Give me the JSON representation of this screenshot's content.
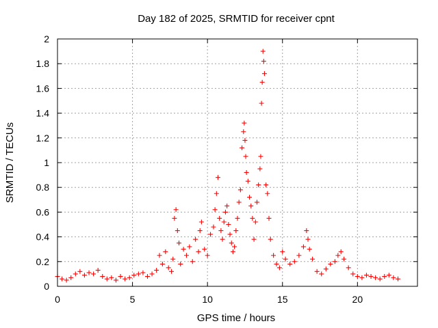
{
  "chart_data": {
    "type": "scatter",
    "title": "Day 182 of 2025, SRMTID for receiver cpnt",
    "xlabel": "GPS time / hours",
    "ylabel": "SRMTID / TECUs",
    "xlim": [
      0,
      24
    ],
    "ylim": [
      0,
      2
    ],
    "xticks": [
      0,
      5,
      10,
      15,
      20
    ],
    "xtick_labels": [
      "0",
      "5",
      "10",
      "15",
      "20"
    ],
    "yticks": [
      0,
      0.2,
      0.4,
      0.6,
      0.8,
      1,
      1.2,
      1.4,
      1.6,
      1.8,
      2
    ],
    "ytick_labels": [
      "0",
      "0.2",
      "0.4",
      "0.6",
      "0.8",
      "1",
      "1.2",
      "1.4",
      "1.6",
      "1.8",
      "2"
    ],
    "grid": true,
    "marker": "plus",
    "series": [
      {
        "name": "SRMTID",
        "color": "#ff0000",
        "x": [
          0.0,
          0.3,
          0.6,
          0.9,
          1.2,
          1.5,
          1.8,
          2.1,
          2.4,
          2.7,
          3.0,
          3.3,
          3.6,
          3.9,
          4.2,
          4.5,
          4.8,
          5.1,
          5.4,
          5.7,
          6.0,
          6.3,
          6.6,
          6.8,
          7.0,
          7.2,
          7.4,
          7.6,
          7.7,
          7.8,
          7.9,
          8.0,
          8.1,
          8.2,
          8.4,
          8.6,
          8.8,
          9.0,
          9.2,
          9.4,
          9.5,
          9.6,
          9.8,
          10.0,
          10.2,
          10.4,
          10.5,
          10.6,
          10.7,
          10.8,
          10.9,
          11.0,
          11.1,
          11.2,
          11.3,
          11.4,
          11.5,
          11.6,
          11.7,
          11.8,
          11.9,
          12.0,
          12.1,
          12.2,
          12.3,
          12.4,
          12.45,
          12.5,
          12.55,
          12.6,
          12.7,
          12.8,
          12.9,
          13.0,
          13.1,
          13.2,
          13.3,
          13.4,
          13.5,
          13.55,
          13.6,
          13.65,
          13.7,
          13.75,
          13.8,
          13.9,
          14.0,
          14.1,
          14.2,
          14.4,
          14.6,
          14.8,
          15.0,
          15.2,
          15.5,
          15.8,
          16.1,
          16.4,
          16.6,
          16.7,
          16.8,
          17.0,
          17.3,
          17.6,
          17.9,
          18.2,
          18.5,
          18.7,
          18.9,
          19.1,
          19.4,
          19.7,
          20.0,
          20.3,
          20.6,
          20.9,
          21.2,
          21.5,
          21.8,
          22.1,
          22.4,
          22.7
        ],
        "y": [
          0.08,
          0.06,
          0.05,
          0.07,
          0.1,
          0.12,
          0.09,
          0.11,
          0.1,
          0.13,
          0.08,
          0.06,
          0.07,
          0.05,
          0.08,
          0.06,
          0.07,
          0.09,
          0.1,
          0.11,
          0.08,
          0.1,
          0.13,
          0.25,
          0.18,
          0.28,
          0.15,
          0.12,
          0.22,
          0.55,
          0.62,
          0.45,
          0.35,
          0.18,
          0.3,
          0.25,
          0.32,
          0.2,
          0.38,
          0.28,
          0.45,
          0.52,
          0.3,
          0.25,
          0.42,
          0.48,
          0.62,
          0.75,
          0.88,
          0.55,
          0.45,
          0.38,
          0.52,
          0.6,
          0.65,
          0.5,
          0.42,
          0.35,
          0.28,
          0.32,
          0.45,
          0.55,
          0.68,
          0.78,
          1.12,
          1.25,
          1.32,
          1.18,
          1.05,
          0.92,
          0.85,
          0.72,
          0.65,
          0.55,
          0.38,
          0.52,
          0.68,
          0.82,
          0.95,
          1.05,
          1.48,
          1.65,
          1.9,
          1.82,
          1.72,
          0.82,
          0.75,
          0.55,
          0.38,
          0.25,
          0.18,
          0.15,
          0.28,
          0.22,
          0.18,
          0.2,
          0.25,
          0.32,
          0.45,
          0.38,
          0.3,
          0.22,
          0.12,
          0.1,
          0.14,
          0.18,
          0.2,
          0.25,
          0.28,
          0.22,
          0.15,
          0.1,
          0.08,
          0.07,
          0.09,
          0.08,
          0.07,
          0.06,
          0.08,
          0.09,
          0.07,
          0.06
        ]
      }
    ]
  }
}
